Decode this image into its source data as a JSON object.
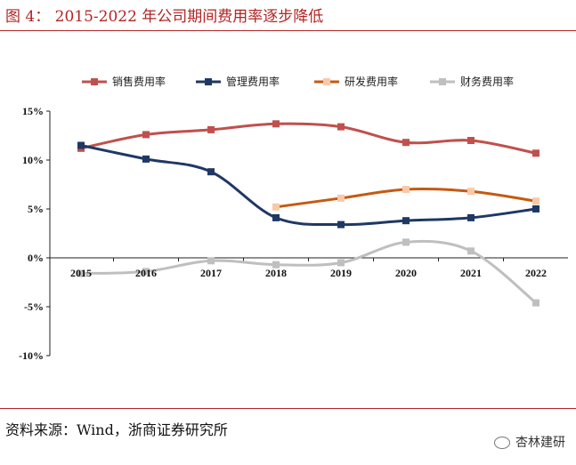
{
  "figure": {
    "title": "图 4：  2015-2022 年公司期间费用率逐步降低",
    "source": "资料来源：Wind，浙商证券研究所",
    "watermark": "杏林建研"
  },
  "colors": {
    "accent": "#b22424",
    "series": [
      "#c0504d",
      "#1f3864",
      "#c55a11",
      "#bfbfbf"
    ],
    "markers": [
      "#c0504d",
      "#1f3864",
      "#f8c9a8",
      "#bfbfbf"
    ]
  },
  "chart_data": {
    "type": "line",
    "title": "",
    "xlabel": "",
    "ylabel": "",
    "categories": [
      "2015",
      "2016",
      "2017",
      "2018",
      "2019",
      "2020",
      "2021",
      "2022"
    ],
    "ylim": [
      -10,
      15
    ],
    "yticks": [
      15,
      10,
      5,
      0,
      -5,
      -10
    ],
    "ytick_labels": [
      "15%",
      "10%",
      "5%",
      "0%",
      "-5%",
      "-10%"
    ],
    "legend_position": "top",
    "series": [
      {
        "name": "销售费用率",
        "values": [
          11.2,
          12.6,
          13.1,
          13.7,
          13.4,
          11.8,
          12.0,
          10.7
        ]
      },
      {
        "name": "管理费用率",
        "values": [
          11.5,
          10.1,
          8.8,
          4.1,
          3.4,
          3.8,
          4.1,
          5.0
        ]
      },
      {
        "name": "研发费用率",
        "values": [
          null,
          null,
          null,
          5.2,
          6.1,
          7.0,
          6.8,
          5.8
        ]
      },
      {
        "name": "财务费用率",
        "values": [
          -1.6,
          -1.4,
          -0.3,
          -0.7,
          -0.5,
          1.6,
          0.7,
          -4.6
        ]
      }
    ]
  }
}
